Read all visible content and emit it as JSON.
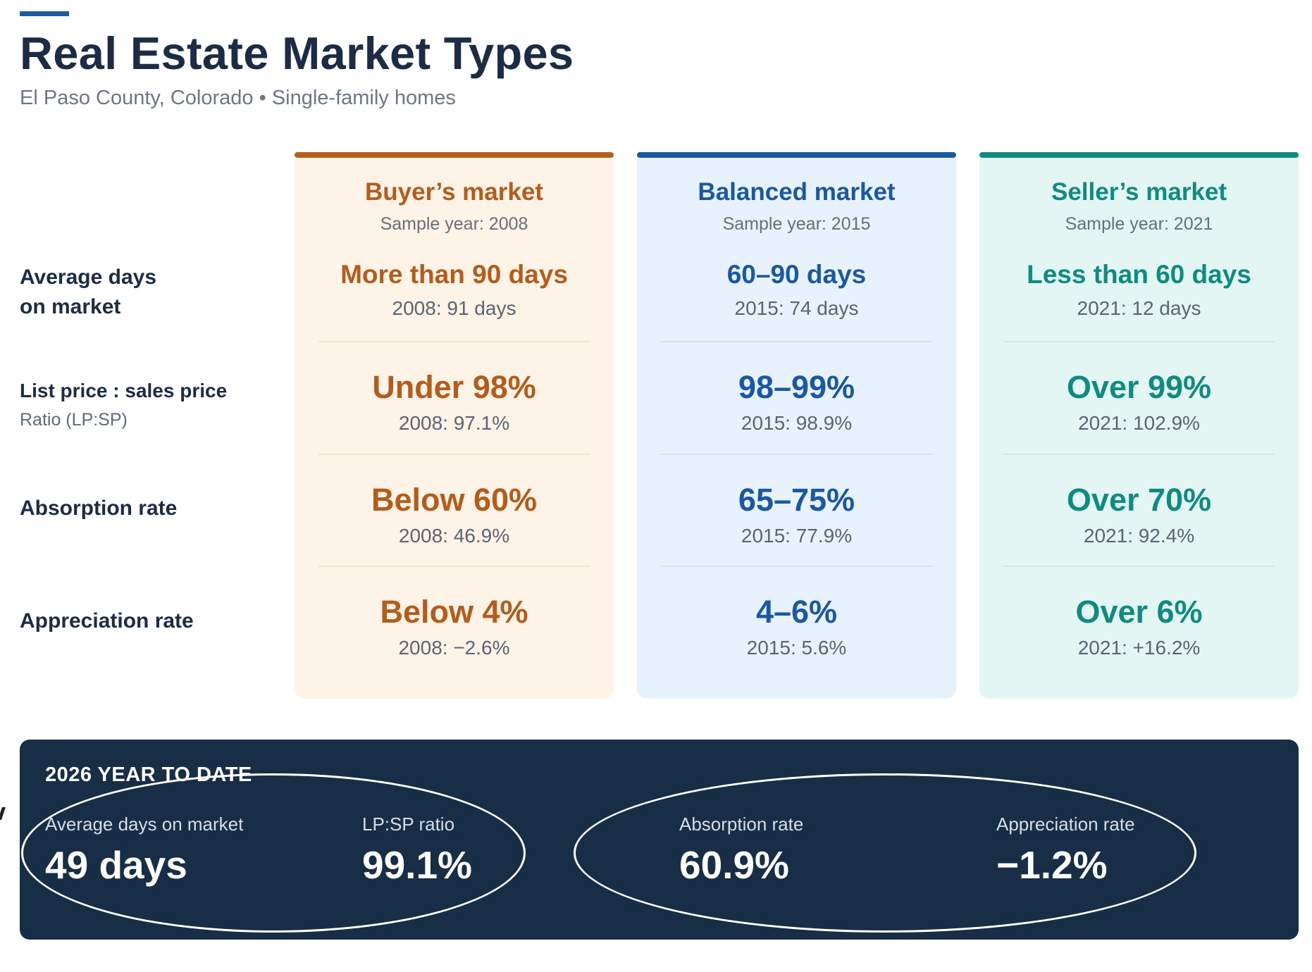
{
  "header": {
    "title": "Real Estate Market Types",
    "subtitle": "El Paso County, Colorado • Single-family homes"
  },
  "rows": [
    {
      "label": "Average days on market",
      "sub": ""
    },
    {
      "label": "List price : sales price",
      "sub": "Ratio (LP:SP)"
    },
    {
      "label": "Absorption rate",
      "sub": ""
    },
    {
      "label": "Appreciation rate",
      "sub": ""
    }
  ],
  "rows_split": {
    "avg_line1": "Average days",
    "avg_line2": "on market"
  },
  "columns": [
    {
      "title": "Buyer’s market",
      "sample": "Sample year: 2008",
      "accent_color": "#b55c1c",
      "cells": [
        {
          "value": "More than 90 days",
          "detail": "2008: 91 days"
        },
        {
          "value": "Under 98%",
          "detail": "2008: 97.1%"
        },
        {
          "value": "Below 60%",
          "detail": "2008: 46.9%"
        },
        {
          "value": "Below 4%",
          "detail": "2008: −2.6%"
        }
      ]
    },
    {
      "title": "Balanced market",
      "sample": "Sample year: 2015",
      "accent_color": "#1a58a3",
      "cells": [
        {
          "value": "60–90 days",
          "detail": "2015: 74 days"
        },
        {
          "value": "98–99%",
          "detail": "2015: 98.9%"
        },
        {
          "value": "65–75%",
          "detail": "2015: 77.9%"
        },
        {
          "value": "4–6%",
          "detail": "2015: 5.6%"
        }
      ]
    },
    {
      "title": "Seller’s market",
      "sample": "Sample year: 2021",
      "accent_color": "#0f8b80",
      "cells": [
        {
          "value": "Less than 60 days",
          "detail": "2021: 12 days"
        },
        {
          "value": "Over 99%",
          "detail": "2021: 102.9%"
        },
        {
          "value": "Over 70%",
          "detail": "2021: 92.4%"
        },
        {
          "value": "Over 6%",
          "detail": "2021: +16.2%"
        }
      ]
    }
  ],
  "ytd": {
    "title": "2026 YEAR TO DATE",
    "metrics": [
      {
        "label": "Average days on market",
        "value": "49 days"
      },
      {
        "label": "LP:SP ratio",
        "value": "99.1%"
      },
      {
        "label": "Absorption rate",
        "value": "60.9%"
      },
      {
        "label": "Appreciation rate",
        "value": "−1.2%"
      }
    ]
  }
}
